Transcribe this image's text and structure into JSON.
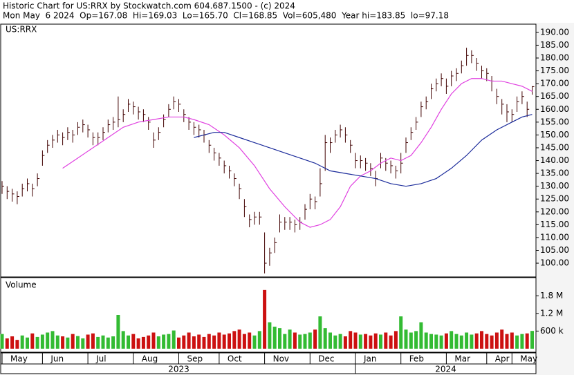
{
  "chart_data": {
    "type": "ohlc",
    "header": [
      "Historic Chart for US:RRX by Stockwatch.com 604.687.1500 - (c) 2024",
      "Mon May  6 2024  Op=167.08  Hi=169.03  Lo=165.70  Cl=168.85  Vol=605,480  Year hi=183.85  lo=97.18"
    ],
    "symbol": "US:RRX",
    "volume_label": "Volume",
    "categories": [
      null,
      null,
      null,
      null,
      null,
      null,
      null,
      null,
      null,
      null,
      null,
      null,
      null,
      null,
      null,
      null,
      null,
      null,
      null,
      null,
      null,
      null,
      null,
      null,
      null,
      null,
      null,
      null,
      null,
      null,
      null,
      null,
      null,
      null,
      null,
      null,
      null,
      null,
      null,
      null,
      null,
      null,
      null,
      null,
      null,
      null,
      null,
      null,
      null,
      null,
      null,
      null,
      null,
      null,
      null,
      null,
      null,
      null,
      null,
      null,
      null,
      null,
      null,
      null,
      null,
      null,
      null,
      null,
      null,
      null,
      null,
      null,
      null,
      null,
      null,
      null,
      null,
      null,
      null,
      null,
      null,
      null,
      null,
      null,
      null,
      null,
      null,
      null,
      null,
      null,
      null,
      null,
      null,
      null,
      null,
      null,
      null,
      null,
      null,
      null,
      null,
      null,
      null,
      null,
      null,
      null
    ],
    "close": [
      130,
      128,
      127,
      126,
      129,
      131,
      129,
      133,
      142,
      146,
      148,
      150,
      149,
      151,
      150,
      153,
      154,
      152,
      149,
      149,
      151,
      154,
      155,
      156,
      158,
      162,
      161,
      159,
      158,
      155,
      148,
      151,
      156,
      160,
      163,
      162,
      158,
      155,
      153,
      152,
      150,
      146,
      143,
      141,
      138,
      136,
      133,
      129,
      122,
      117,
      118,
      118,
      100,
      104,
      108,
      116,
      116,
      116,
      115,
      116,
      121,
      125,
      124,
      131,
      147,
      147,
      150,
      152,
      150,
      146,
      140,
      140,
      139,
      137,
      133,
      141,
      139,
      138,
      136,
      139,
      147,
      151,
      155,
      161,
      163,
      168,
      170,
      172,
      169,
      173,
      174,
      177,
      181,
      181,
      178,
      175,
      174,
      171,
      165,
      162,
      159,
      158,
      163,
      165,
      160,
      168.85
    ],
    "high": [
      132,
      130,
      129,
      128,
      131,
      133,
      131,
      135,
      144,
      148,
      150,
      152,
      151,
      153,
      152,
      155,
      156,
      154,
      151,
      151,
      153,
      156,
      157,
      165,
      160,
      164,
      163,
      161,
      160,
      157,
      151,
      153,
      158,
      162,
      165,
      164,
      160,
      157,
      155,
      154,
      152,
      148,
      145,
      143,
      140,
      138,
      135,
      131,
      125,
      119,
      120,
      120,
      112,
      106,
      110,
      119,
      118,
      118,
      117,
      118,
      123,
      127,
      126,
      137,
      150,
      149,
      152,
      154,
      153,
      148,
      143,
      142,
      141,
      139,
      136,
      143,
      141,
      140,
      138,
      143,
      149,
      153,
      157,
      163,
      165,
      170,
      172,
      174,
      172,
      175,
      176,
      179,
      184,
      183,
      180,
      177,
      176,
      173,
      168,
      164,
      162,
      160,
      165,
      167,
      163,
      169.03
    ],
    "low": [
      127,
      125,
      124,
      123,
      126,
      128,
      126,
      130,
      138,
      143,
      145,
      147,
      146,
      148,
      147,
      150,
      151,
      149,
      146,
      146,
      148,
      151,
      152,
      153,
      155,
      159,
      158,
      156,
      155,
      152,
      145,
      148,
      153,
      157,
      160,
      159,
      155,
      152,
      150,
      149,
      147,
      143,
      140,
      138,
      135,
      133,
      130,
      125,
      118,
      114,
      115,
      115,
      96,
      99,
      104,
      112,
      113,
      113,
      112,
      113,
      117,
      121,
      121,
      126,
      136,
      143,
      147,
      149,
      147,
      143,
      137,
      137,
      136,
      134,
      130,
      137,
      136,
      135,
      133,
      135,
      143,
      148,
      152,
      157,
      160,
      164,
      167,
      169,
      166,
      169,
      171,
      174,
      177,
      178,
      175,
      172,
      171,
      167,
      162,
      158,
      155,
      155,
      159,
      162,
      157,
      165.7
    ],
    "volume": [
      500000,
      350000,
      420000,
      300000,
      450000,
      380000,
      520000,
      400000,
      480000,
      550000,
      600000,
      450000,
      420000,
      380000,
      500000,
      430000,
      350000,
      480000,
      520000,
      400000,
      450000,
      380000,
      420000,
      1150000,
      600000,
      450000,
      500000,
      350000,
      400000,
      450000,
      550000,
      420000,
      480000,
      500000,
      620000,
      380000,
      450000,
      550000,
      420000,
      480000,
      400000,
      500000,
      450000,
      550000,
      480000,
      520000,
      600000,
      650000,
      500000,
      550000,
      450000,
      600000,
      2000000,
      900000,
      750000,
      700000,
      500000,
      650000,
      550000,
      480000,
      500000,
      550000,
      650000,
      1100000,
      700000,
      550000,
      450000,
      500000,
      420000,
      600000,
      550000,
      480000,
      500000,
      450000,
      520000,
      480000,
      550000,
      450000,
      600000,
      1100000,
      650000,
      550000,
      600000,
      900000,
      550000,
      500000,
      480000,
      450000,
      520000,
      600000,
      500000,
      450000,
      550000,
      480000,
      520000,
      600000,
      500000,
      450000,
      550000,
      650000,
      500000,
      550000,
      450000,
      500000,
      520000,
      605480
    ],
    "series": [
      {
        "color": "#e040e0",
        "x": [
          12,
          15,
          18,
          21,
          24,
          27,
          30,
          33,
          36,
          38,
          41,
          44,
          47,
          50,
          53,
          56,
          59,
          61,
          63,
          65,
          67,
          69,
          71,
          73,
          75,
          77,
          79,
          81,
          83,
          85,
          87,
          89,
          91,
          93,
          95,
          97,
          99,
          101,
          103,
          105
        ],
        "values": [
          137,
          141,
          145,
          149,
          153,
          155,
          156,
          157,
          157,
          156,
          154,
          150,
          145,
          138,
          129,
          122,
          116,
          114,
          115,
          117,
          122,
          130,
          134,
          136,
          139,
          141,
          140,
          142,
          147,
          153,
          160,
          166,
          170,
          172,
          172,
          171,
          171,
          170,
          169,
          167
        ]
      },
      {
        "color": "#1a2a9a",
        "x": [
          38,
          40,
          42,
          44,
          47,
          50,
          53,
          56,
          59,
          62,
          65,
          68,
          71,
          74,
          77,
          80,
          83,
          86,
          89,
          92,
          95,
          98,
          101,
          103,
          105
        ],
        "values": [
          149,
          150,
          151,
          151,
          149,
          147,
          145,
          143,
          141,
          139,
          136,
          135,
          134,
          133,
          131,
          130,
          131,
          133,
          137,
          142,
          148,
          152,
          155,
          157,
          158
        ]
      }
    ],
    "bar_color": "#400000",
    "up_color": "#33bb33",
    "down_color": "#cc1111",
    "ylim": [
      94.9,
      193.2
    ],
    "yticks": [
      {
        "value": 100,
        "label": "100.00"
      },
      {
        "value": 105,
        "label": "105.00"
      },
      {
        "value": 110,
        "label": "110.00"
      },
      {
        "value": 115,
        "label": "115.00"
      },
      {
        "value": 120,
        "label": "120.00"
      },
      {
        "value": 125,
        "label": "125.00"
      },
      {
        "value": 130,
        "label": "130.00"
      },
      {
        "value": 135,
        "label": "135.00"
      },
      {
        "value": 140,
        "label": "140.00"
      },
      {
        "value": 145,
        "label": "145.00"
      },
      {
        "value": 150,
        "label": "150.00"
      },
      {
        "value": 155,
        "label": "155.00"
      },
      {
        "value": 160,
        "label": "160.00"
      },
      {
        "value": 165,
        "label": "165.00"
      },
      {
        "value": 170,
        "label": "170.00"
      },
      {
        "value": 175,
        "label": "175.00"
      },
      {
        "value": 180,
        "label": "180.00"
      },
      {
        "value": 185,
        "label": "185.00"
      },
      {
        "value": 190,
        "label": "190.00"
      }
    ],
    "volume_ylim": [
      -120000,
      2420000
    ],
    "volume_yticks": [
      {
        "value": 600000,
        "label": "600 k"
      },
      {
        "value": 1200000,
        "label": "1.2 M"
      },
      {
        "value": 1800000,
        "label": "1.8 M"
      }
    ],
    "xticks": [
      {
        "value": 0,
        "label": "May"
      },
      {
        "value": 8,
        "label": "Jun"
      },
      {
        "value": 17,
        "label": "Jul"
      },
      {
        "value": 26,
        "label": "Aug"
      },
      {
        "value": 35,
        "label": "Sep"
      },
      {
        "value": 43,
        "label": "Oct"
      },
      {
        "value": 52,
        "label": "Nov"
      },
      {
        "value": 61,
        "label": "Dec"
      },
      {
        "value": 70,
        "label": "Jan"
      },
      {
        "value": 79,
        "label": "Feb"
      },
      {
        "value": 88,
        "label": "Mar"
      },
      {
        "value": 96,
        "label": "Apr"
      },
      {
        "value": 101,
        "label": "May"
      }
    ],
    "years": [
      {
        "value": 0,
        "label": "2023"
      },
      {
        "value": 70,
        "label": "2024"
      }
    ]
  }
}
